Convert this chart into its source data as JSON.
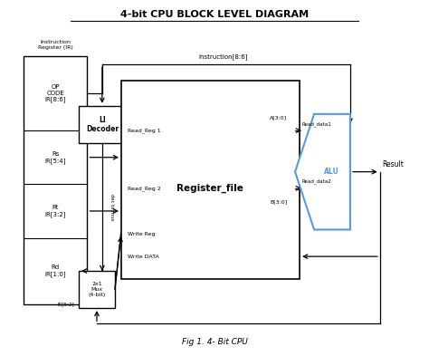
{
  "title": "4-bit CPU BLOCK LEVEL DIAGRAM",
  "caption": "Fig 1. 4- Bit CPU",
  "bg_color": "#ffffff",
  "title_color": "#000000",
  "box_color": "#000000",
  "alu_color": "#5b9bd5",
  "arrow_color": "#000000",
  "line_color": "#555555",
  "text_color": "#000000",
  "ir_label": "Instruction\nRegister (IR)",
  "ir_sections": [
    "OP\nCODE\nIR[8:6]",
    "Rs\nIR[5:4]",
    "Rt\nIR[3:2]",
    "Rd\nIR[1:0]"
  ],
  "decoder_label": "LI\nDecoder",
  "regfile_label": "Register_file",
  "mux_label": "2x1\nMux\n(4-bit)",
  "mux_sublabel": "IR[5:2]",
  "instruction_label": "Instruction[8:6]",
  "read_reg1": "Read_Reg 1",
  "read_reg2": "Read_Reg 2",
  "write_reg": "Write Reg",
  "write_data": "Write DATA",
  "read_data1": "Read_data1",
  "read_data2": "Read_data2",
  "a_label": "A[3:0]",
  "b_label": "B[3:0]",
  "alu_label": "ALU",
  "result_label": "Result",
  "dec_to_mux": "dec to mux"
}
